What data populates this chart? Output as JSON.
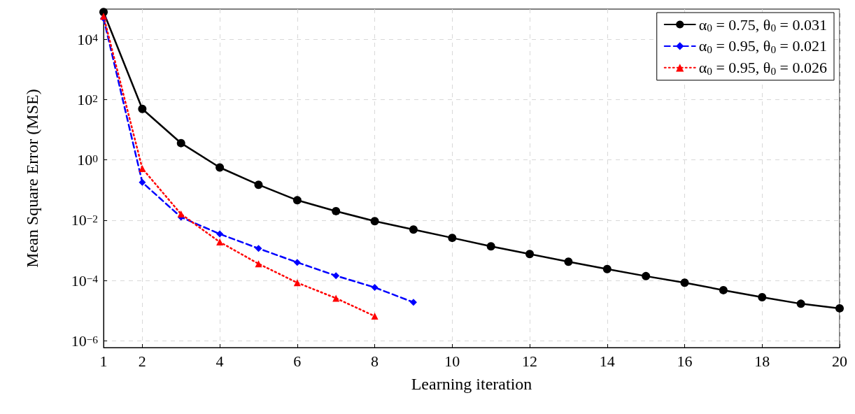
{
  "chart_data": {
    "type": "line",
    "xlabel": "Learning iteration",
    "ylabel": "Mean Square Error (MSE)",
    "log": "y",
    "grid": true,
    "legend": "top right",
    "xlim": [
      1,
      20
    ],
    "xticks": [
      1,
      2,
      4,
      6,
      8,
      10,
      12,
      14,
      16,
      18,
      20
    ],
    "ylim": [
      6e-07,
      100000
    ],
    "yticks": [
      {
        "value": 1e-06,
        "label": "10$^{−6}$"
      },
      {
        "value": 0.0001,
        "label": "10$^{−4}$"
      },
      {
        "value": 0.01,
        "label": "10$^{−2}$"
      },
      {
        "value": 1,
        "label": "10$^{0}$"
      },
      {
        "value": 100,
        "label": "10$^{2}$"
      },
      {
        "value": 10000,
        "label": "10$^{4}$"
      }
    ],
    "series": [
      {
        "name": "α$_{0}$ = 0.75, θ$_{0}$ = 0.031",
        "color": "#000000",
        "marker": "circle",
        "line_style": "solid",
        "x": [
          1,
          2,
          3,
          4,
          5,
          6,
          7,
          8,
          9,
          10,
          11,
          12,
          13,
          14,
          15,
          16,
          17,
          18,
          19,
          20
        ],
        "values": [
          80000,
          49,
          3.6,
          0.56,
          0.15,
          0.046,
          0.02,
          0.0093,
          0.0049,
          0.0026,
          0.00136,
          0.00076,
          0.00042,
          0.00024,
          0.00014,
          8.5e-05,
          4.8e-05,
          2.8e-05,
          1.7e-05,
          1.2e-05
        ]
      },
      {
        "name": "α$_{0}$ = 0.95, θ$_{0}$ = 0.021",
        "color": "#0000ff",
        "marker": "diamond",
        "line_style": "dashed",
        "x": [
          1,
          2,
          3,
          4,
          5,
          6,
          7,
          8,
          9
        ],
        "values": [
          49000,
          0.18,
          0.0126,
          0.0035,
          0.00116,
          0.0004,
          0.000145,
          5.9e-05,
          1.9e-05
        ]
      },
      {
        "name": "α$_{0}$ = 0.95, θ$_{0}$ = 0.026",
        "color": "#ff0000",
        "marker": "triangle",
        "line_style": "dotted",
        "x": [
          1,
          2,
          3,
          4,
          5,
          6,
          7,
          8
        ],
        "values": [
          58000,
          0.52,
          0.016,
          0.0019,
          0.00036,
          8.5e-05,
          2.6e-05,
          6.6e-06
        ]
      }
    ]
  }
}
